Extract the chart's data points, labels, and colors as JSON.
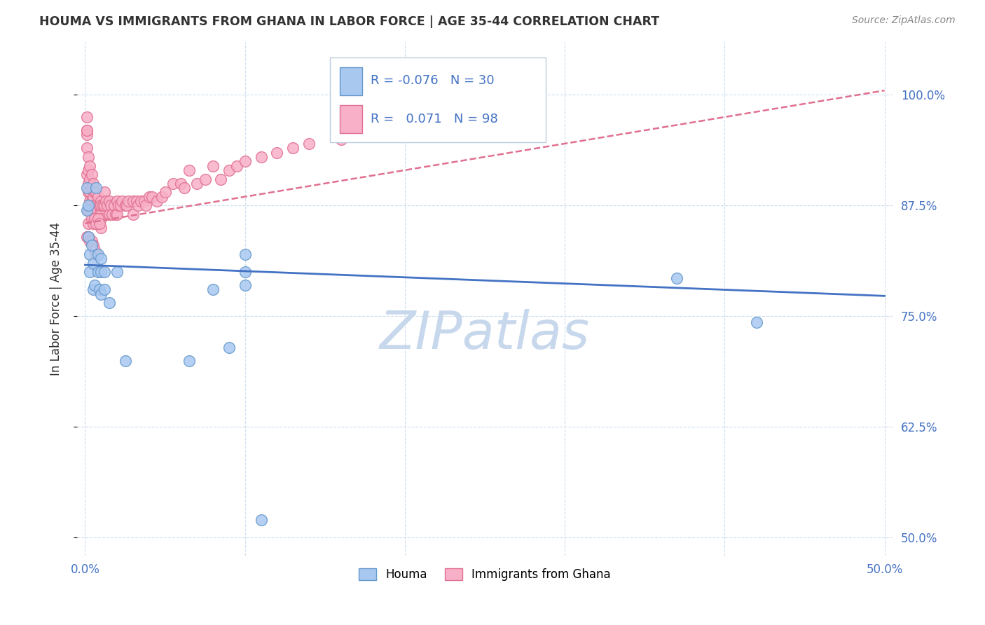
{
  "title": "HOUMA VS IMMIGRANTS FROM GHANA IN LABOR FORCE | AGE 35-44 CORRELATION CHART",
  "source": "Source: ZipAtlas.com",
  "ylabel": "In Labor Force | Age 35-44",
  "x_ticks": [
    0.0,
    0.1,
    0.2,
    0.3,
    0.4,
    0.5
  ],
  "x_bottom_labels": [
    "0.0%",
    "",
    "",
    "",
    "",
    "50.0%"
  ],
  "y_ticks": [
    0.5,
    0.625,
    0.75,
    0.875,
    1.0
  ],
  "y_tick_labels": [
    "50.0%",
    "62.5%",
    "75.0%",
    "87.5%",
    "100.0%"
  ],
  "xlim": [
    -0.005,
    0.505
  ],
  "ylim": [
    0.48,
    1.06
  ],
  "houma_R": -0.076,
  "houma_N": 30,
  "ghana_R": 0.071,
  "ghana_N": 98,
  "houma_color": "#A8C8F0",
  "houma_edge_color": "#6699CC",
  "ghana_color": "#F8B0C8",
  "ghana_edge_color": "#E07090",
  "houma_line_color": "#4472C4",
  "ghana_line_color": "#E07090",
  "watermark_color": "#C8D8EC",
  "title_color": "#333333",
  "axis_label_color": "#333333",
  "tick_color": "#4472C4",
  "grid_color": "#CCDDEE",
  "houma_x": [
    0.001,
    0.001,
    0.002,
    0.002,
    0.003,
    0.003,
    0.004,
    0.005,
    0.005,
    0.006,
    0.007,
    0.008,
    0.008,
    0.009,
    0.01,
    0.01,
    0.01,
    0.012,
    0.012,
    0.015,
    0.02,
    0.025,
    0.065,
    0.08,
    0.09,
    0.1,
    0.1,
    0.1,
    0.37,
    0.42
  ],
  "houma_y": [
    0.895,
    0.87,
    0.875,
    0.84,
    0.82,
    0.8,
    0.83,
    0.81,
    0.78,
    0.785,
    0.895,
    0.82,
    0.8,
    0.78,
    0.815,
    0.8,
    0.775,
    0.8,
    0.78,
    0.765,
    0.8,
    0.7,
    0.7,
    0.78,
    0.715,
    0.82,
    0.8,
    0.785,
    0.793,
    0.743
  ],
  "ghana_x": [
    0.001,
    0.001,
    0.001,
    0.001,
    0.002,
    0.002,
    0.002,
    0.002,
    0.002,
    0.003,
    0.003,
    0.003,
    0.003,
    0.004,
    0.004,
    0.004,
    0.005,
    0.005,
    0.005,
    0.006,
    0.006,
    0.007,
    0.007,
    0.008,
    0.008,
    0.008,
    0.009,
    0.009,
    0.01,
    0.01,
    0.01,
    0.01,
    0.01,
    0.011,
    0.012,
    0.012,
    0.013,
    0.014,
    0.015,
    0.015,
    0.016,
    0.017,
    0.018,
    0.019,
    0.02,
    0.02,
    0.021,
    0.022,
    0.023,
    0.025,
    0.026,
    0.027,
    0.03,
    0.03,
    0.032,
    0.033,
    0.035,
    0.037,
    0.038,
    0.04,
    0.042,
    0.045,
    0.048,
    0.05,
    0.055,
    0.06,
    0.062,
    0.065,
    0.07,
    0.075,
    0.08,
    0.085,
    0.09,
    0.095,
    0.1,
    0.11,
    0.12,
    0.13,
    0.14,
    0.16,
    0.001,
    0.001,
    0.002,
    0.002,
    0.003,
    0.004,
    0.005,
    0.006,
    0.007,
    0.008,
    0.009,
    0.001,
    0.002,
    0.003,
    0.004,
    0.005,
    0.006,
    0.007
  ],
  "ghana_y": [
    0.975,
    0.96,
    0.94,
    0.91,
    0.93,
    0.915,
    0.9,
    0.89,
    0.87,
    0.92,
    0.905,
    0.89,
    0.88,
    0.91,
    0.895,
    0.88,
    0.9,
    0.885,
    0.87,
    0.89,
    0.875,
    0.89,
    0.875,
    0.885,
    0.87,
    0.855,
    0.875,
    0.86,
    0.88,
    0.865,
    0.85,
    0.875,
    0.86,
    0.875,
    0.89,
    0.875,
    0.88,
    0.875,
    0.88,
    0.865,
    0.875,
    0.865,
    0.875,
    0.865,
    0.88,
    0.865,
    0.875,
    0.875,
    0.88,
    0.875,
    0.875,
    0.88,
    0.88,
    0.865,
    0.88,
    0.875,
    0.88,
    0.88,
    0.875,
    0.885,
    0.885,
    0.88,
    0.885,
    0.89,
    0.9,
    0.9,
    0.895,
    0.915,
    0.9,
    0.905,
    0.92,
    0.905,
    0.915,
    0.92,
    0.925,
    0.93,
    0.935,
    0.94,
    0.945,
    0.95,
    0.955,
    0.96,
    0.87,
    0.855,
    0.87,
    0.86,
    0.855,
    0.86,
    0.855,
    0.86,
    0.855,
    0.84,
    0.84,
    0.835,
    0.835,
    0.83,
    0.825,
    0.82
  ],
  "houma_x_low": [
    0.11
  ],
  "houma_y_low": [
    0.52
  ],
  "ghana_trend_x": [
    0.0,
    0.5
  ],
  "ghana_trend_y": [
    0.855,
    1.005
  ],
  "houma_trend_x": [
    0.0,
    0.5
  ],
  "houma_trend_y": [
    0.808,
    0.773
  ]
}
